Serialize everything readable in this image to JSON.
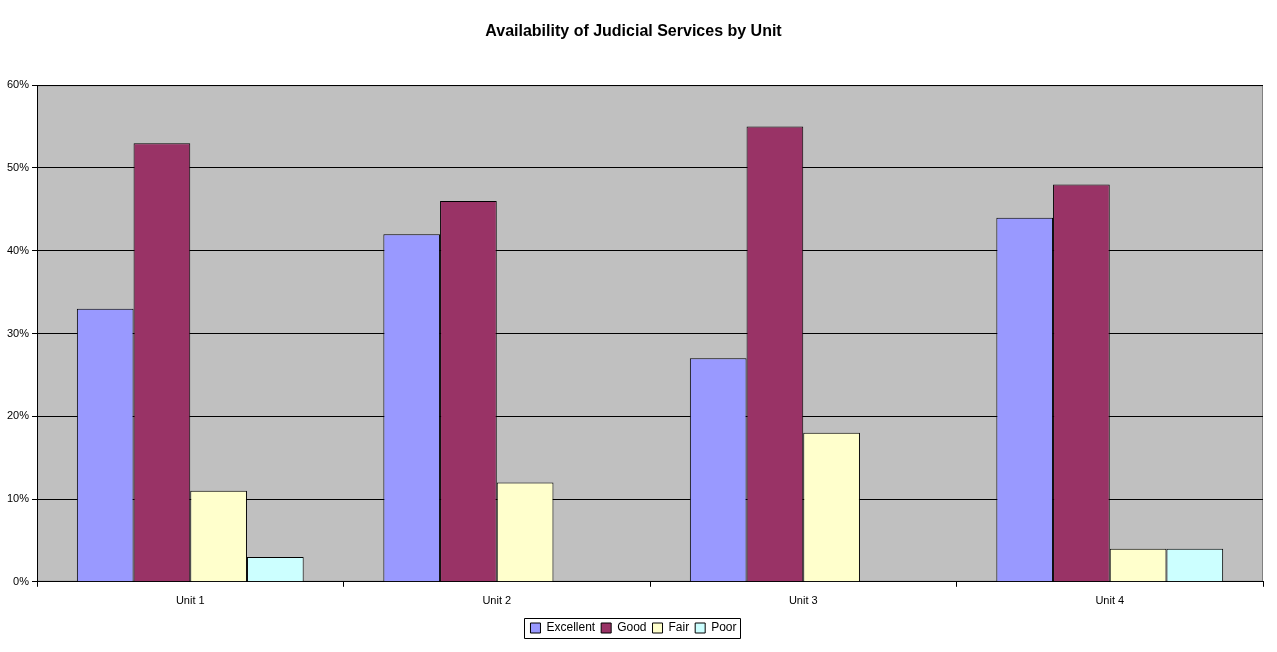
{
  "chart_data": {
    "type": "bar",
    "title": "Availability of Judicial Services by Unit",
    "categories": [
      "Unit 1",
      "Unit 2",
      "Unit 3",
      "Unit 4"
    ],
    "series": [
      {
        "name": "Excellent",
        "color": "#9999ff",
        "values": [
          33,
          42,
          27,
          44
        ]
      },
      {
        "name": "Good",
        "color": "#993366",
        "values": [
          53,
          46,
          55,
          48
        ]
      },
      {
        "name": "Fair",
        "color": "#ffffcc",
        "values": [
          11,
          12,
          18,
          4
        ]
      },
      {
        "name": "Poor",
        "color": "#ccffff",
        "values": [
          3,
          null,
          null,
          4
        ]
      }
    ],
    "ylim": [
      0,
      60
    ],
    "yticks": [
      {
        "value": 0,
        "label": "0%"
      },
      {
        "value": 10,
        "label": "10%"
      },
      {
        "value": 20,
        "label": "20%"
      },
      {
        "value": 30,
        "label": "30%"
      },
      {
        "value": 40,
        "label": "40%"
      },
      {
        "value": 50,
        "label": "50%"
      },
      {
        "value": 60,
        "label": "60%"
      }
    ],
    "grid": "y",
    "legend": "bottom"
  }
}
